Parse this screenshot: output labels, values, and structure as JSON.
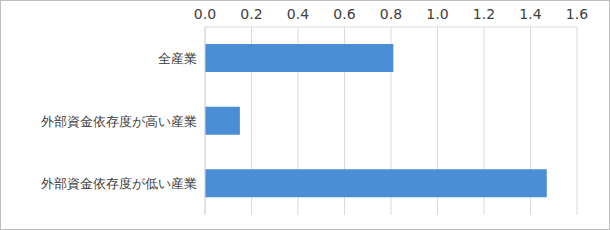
{
  "chart_data": {
    "type": "bar",
    "orientation": "horizontal",
    "categories": [
      "全産業",
      "外部資金依存度が高い産業",
      "外部資金依存度が低い産業"
    ],
    "values": [
      0.81,
      0.15,
      1.47
    ],
    "color": "#4a8fd5",
    "xlim": [
      0,
      1.6
    ],
    "xticks": [
      {
        "value": 0,
        "label": "0.0"
      },
      {
        "value": 0.2,
        "label": "0.2"
      },
      {
        "value": 0.4,
        "label": "0.4"
      },
      {
        "value": 0.6,
        "label": "0.6"
      },
      {
        "value": 0.8,
        "label": "0.8"
      },
      {
        "value": 1.0,
        "label": "1.0"
      },
      {
        "value": 1.2,
        "label": "1.2"
      },
      {
        "value": 1.4,
        "label": "1.4"
      },
      {
        "value": 1.6,
        "label": "1.6"
      }
    ],
    "grid": true
  }
}
